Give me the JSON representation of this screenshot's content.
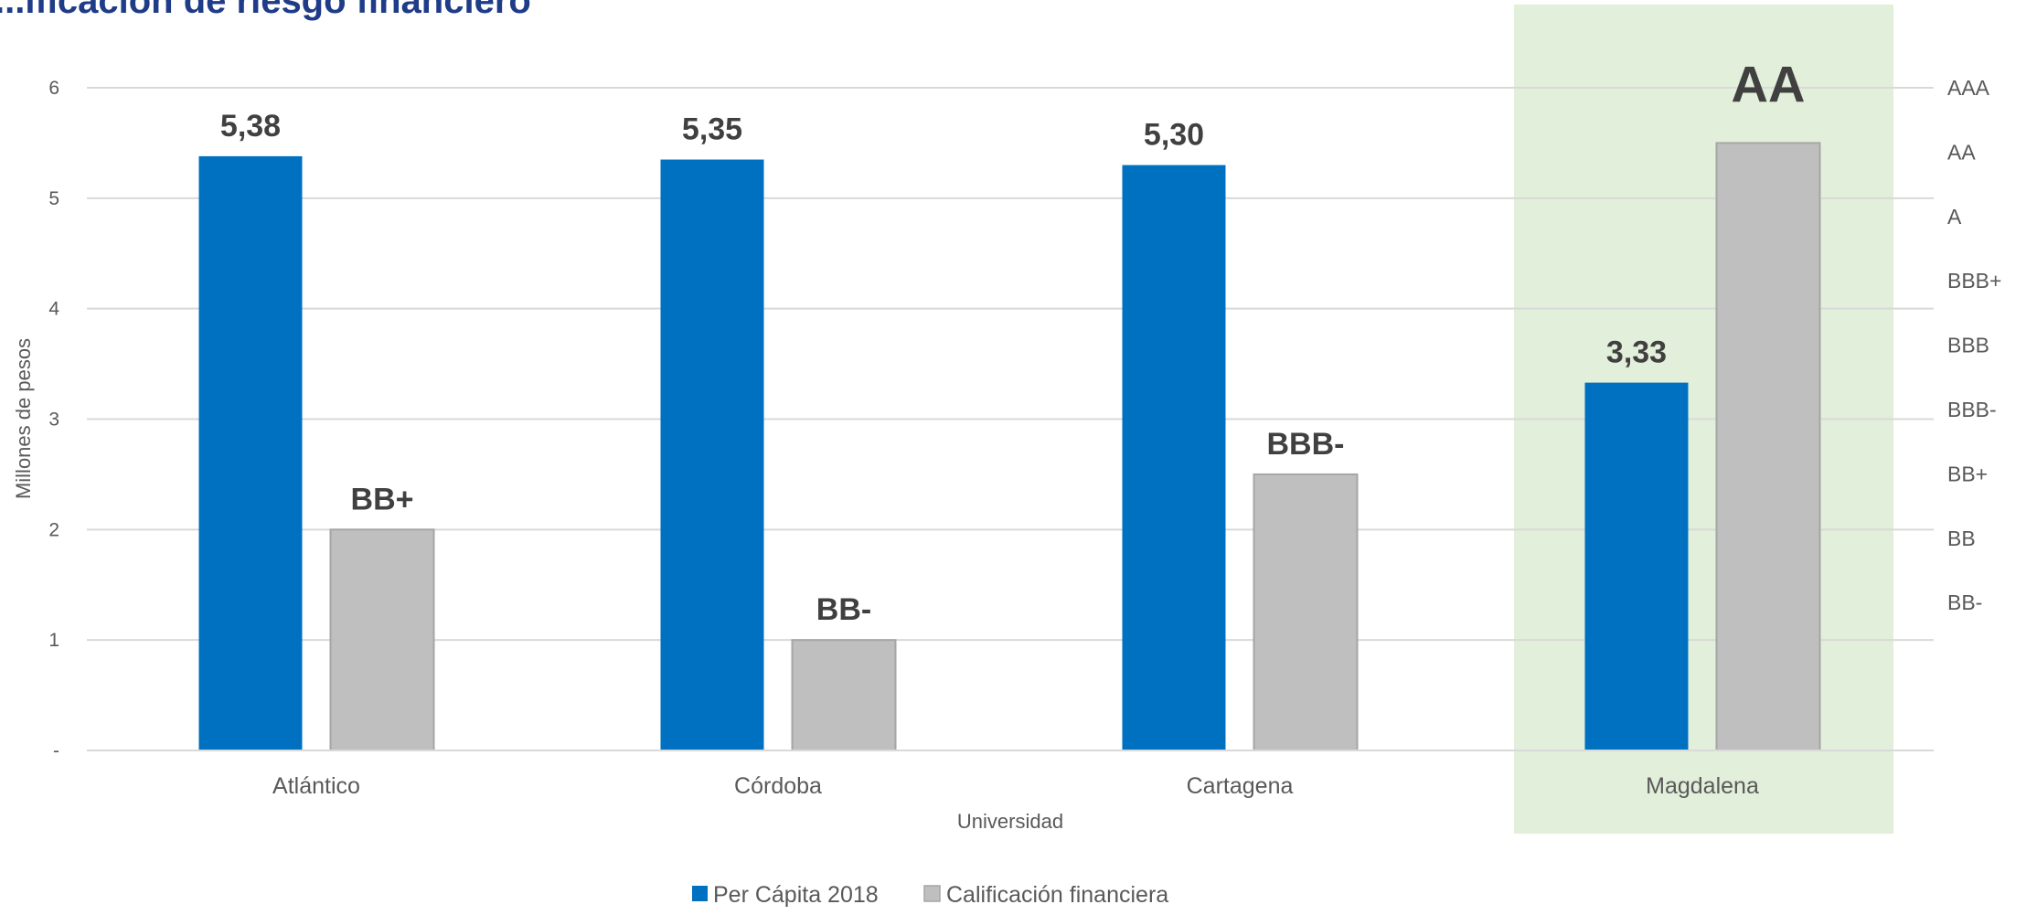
{
  "chart_data": {
    "type": "bar",
    "title": "...ificación de riesgo financiero",
    "xlabel": "Universidad",
    "ylabel": "Millones de pesos",
    "ylim": [
      0,
      6
    ],
    "y_ticks": [
      "-",
      "1",
      "2",
      "3",
      "4",
      "5",
      "6"
    ],
    "y2_ticks": [
      "BB-",
      "BB",
      "BB+",
      "BBB-",
      "BBB",
      "BBB+",
      "A",
      "AA",
      "AAA"
    ],
    "categories": [
      "Atlántico",
      "Córdoba",
      "Cartagena",
      "Magdalena"
    ],
    "highlight_category": "Magdalena",
    "series": [
      {
        "name": "Per Cápita 2018",
        "color": "#0070C0",
        "values": [
          5.38,
          5.35,
          5.3,
          3.33
        ],
        "labels": [
          "5,38",
          "5,35",
          "5,30",
          "3,33"
        ]
      },
      {
        "name": "Calificación financiera",
        "color": "#BFBFBF",
        "values": [
          2,
          1,
          2.5,
          5.5
        ],
        "labels": [
          "BB+",
          "BB-",
          "BBB-",
          "AA"
        ]
      }
    ],
    "grid": true,
    "legend_position": "bottom",
    "highlight_color": "#E2EFDA"
  }
}
